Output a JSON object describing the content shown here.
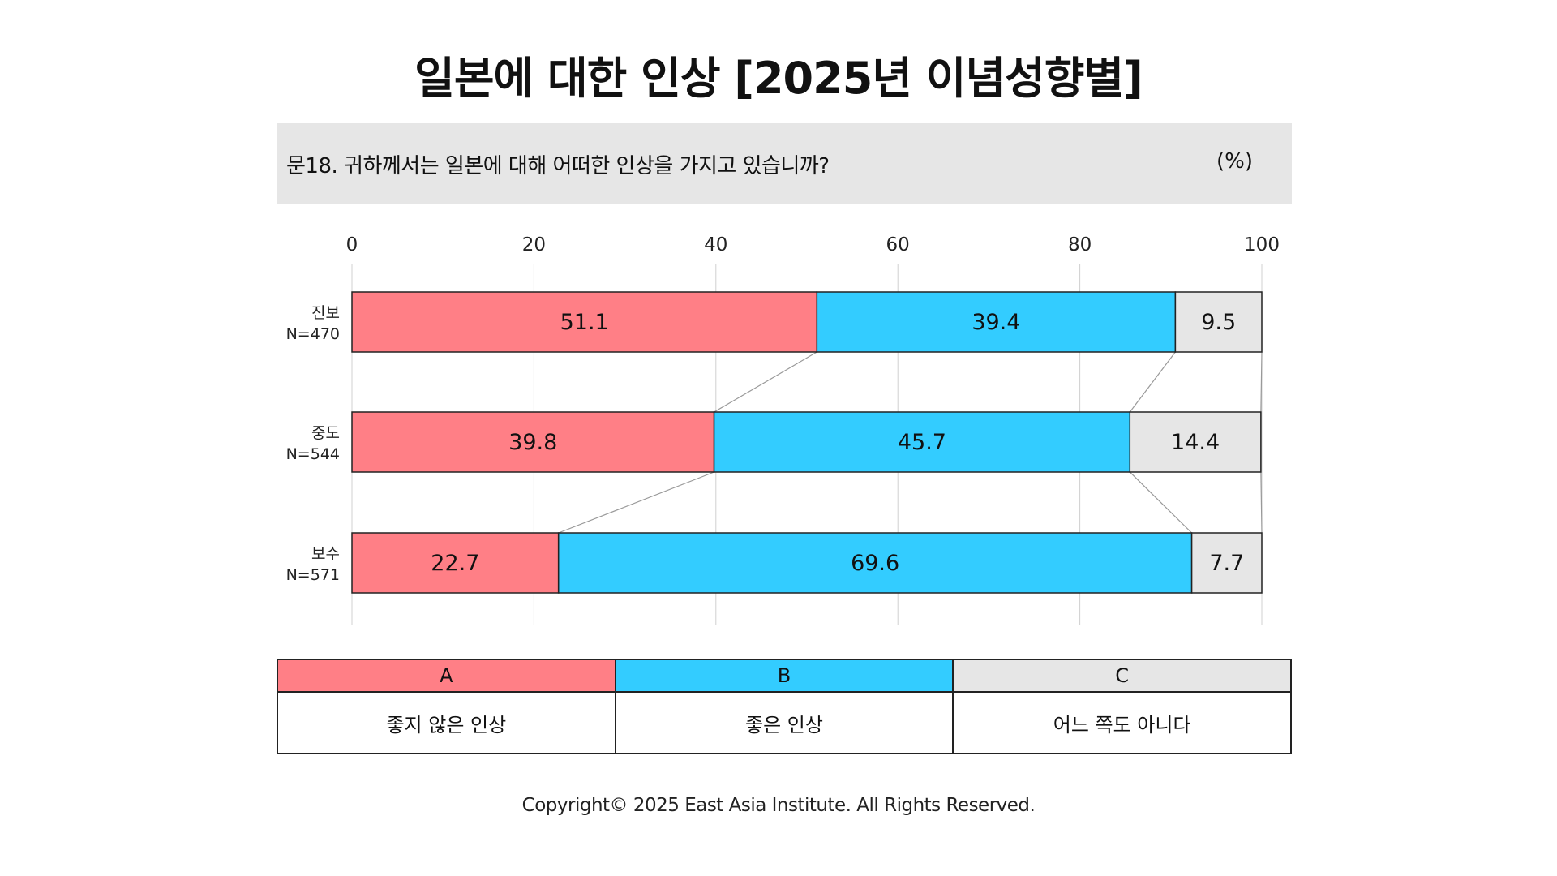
{
  "title": "일본에 대한 인상 [2025년 이념성향별]",
  "question": {
    "text": "문18. 귀하께서는 일본에 대해 어떠한 인상을 가지고 있습니까?",
    "unit": "(%)"
  },
  "colors": {
    "A": "#ff7f86",
    "B": "#33ccff",
    "C": "#e6e6e6",
    "question_bg": "#e6e6e6",
    "grid": "#d0d0d0",
    "connector": "#999999",
    "border": "#222222"
  },
  "chart_data": {
    "type": "bar",
    "orientation": "horizontal",
    "stacked": true,
    "xlim": [
      0,
      100
    ],
    "xticks": [
      "0",
      "20",
      "40",
      "60",
      "80",
      "100"
    ],
    "grid": true,
    "categories": [
      {
        "name": "진보",
        "n": "N=470"
      },
      {
        "name": "중도",
        "n": "N=544"
      },
      {
        "name": "보수",
        "n": "N=571"
      }
    ],
    "series": [
      {
        "name": "A",
        "values": [
          51.1,
          39.8,
          22.7
        ]
      },
      {
        "name": "B",
        "values": [
          39.4,
          45.7,
          69.6
        ]
      },
      {
        "name": "C",
        "values": [
          9.5,
          14.4,
          7.7
        ]
      }
    ],
    "value_labels": [
      [
        "51.1",
        "39.4",
        "9.5"
      ],
      [
        "39.8",
        "45.7",
        "14.4"
      ],
      [
        "22.7",
        "69.6",
        "7.7"
      ]
    ]
  },
  "legend": {
    "keys": [
      "A",
      "B",
      "C"
    ],
    "descriptions": [
      "좋지 않은 인상",
      "좋은 인상",
      "어느 쪽도 아니다"
    ]
  },
  "copyright": "Copyright© 2025 East Asia Institute. All Rights Reserved."
}
